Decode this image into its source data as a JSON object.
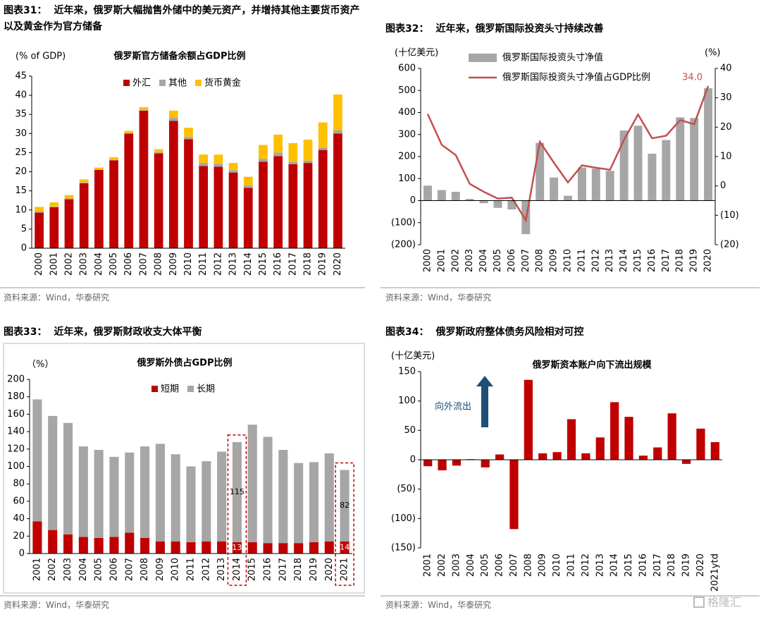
{
  "chart_data": [
    {
      "type": "stacked_bar",
      "figure": "图表31：",
      "caption": "近年来，俄罗斯大幅抛售外储中的美元资产，并增持其他主要货币资产以及黄金作为官方储备",
      "title": "俄罗斯官方储备余额占GDP比例",
      "y_label": "(% of GDP)",
      "categories": [
        "2000",
        "2001",
        "2002",
        "2003",
        "2004",
        "2005",
        "2006",
        "2007",
        "2008",
        "2009",
        "2010",
        "2011",
        "2012",
        "2013",
        "2014",
        "2015",
        "2016",
        "2017",
        "2018",
        "2019",
        "2020"
      ],
      "series": [
        {
          "name": "外汇",
          "color": "#c00000",
          "values": [
            9.3,
            10.7,
            12.8,
            17.0,
            20.5,
            23.0,
            30.0,
            36.0,
            24.8,
            33.3,
            28.5,
            21.5,
            21.3,
            19.8,
            15.8,
            22.6,
            24.1,
            22.0,
            22.3,
            25.7,
            30.0
          ]
        },
        {
          "name": "其他",
          "color": "#a6a6a6",
          "values": [
            0.3,
            0.2,
            0.2,
            0.2,
            0.1,
            0.1,
            0.1,
            0.1,
            0.3,
            0.8,
            0.6,
            0.8,
            0.8,
            0.6,
            0.6,
            0.8,
            0.9,
            0.6,
            0.6,
            0.6,
            0.8
          ]
        },
        {
          "name": "货币黄金",
          "color": "#ffc000",
          "values": [
            1.2,
            1.1,
            0.9,
            0.8,
            0.5,
            0.7,
            0.6,
            0.8,
            0.8,
            1.9,
            2.4,
            2.2,
            2.4,
            1.9,
            2.3,
            3.6,
            4.7,
            4.9,
            5.5,
            6.6,
            9.4
          ]
        }
      ],
      "ylim": [
        0,
        45
      ],
      "yticks": [
        0,
        5,
        10,
        15,
        20,
        25,
        30,
        35,
        40,
        45
      ],
      "grid": false,
      "legend": "top",
      "source": "资料来源：Wind，华泰研究"
    },
    {
      "type": "combo",
      "figure": "图表32：",
      "caption": "近年来，俄罗斯国际投资头寸持续改善",
      "y_label": "(十亿美元)",
      "y2_label": "(%)",
      "categories": [
        "2000",
        "2001",
        "2002",
        "2003",
        "2004",
        "2005",
        "2006",
        "2007",
        "2008",
        "2009",
        "2010",
        "2011",
        "2012",
        "2013",
        "2014",
        "2015",
        "2016",
        "2017",
        "2018",
        "2019",
        "2020"
      ],
      "series": [
        {
          "name": "俄罗斯国际投资头寸净值",
          "type": "bar",
          "color": "#a6a6a6",
          "values": [
            68,
            48,
            40,
            8,
            -12,
            -33,
            -40,
            -152,
            262,
            105,
            22,
            150,
            145,
            135,
            318,
            340,
            213,
            275,
            378,
            375,
            510
          ]
        },
        {
          "name": "俄罗斯国际投资头寸净值占GDP比例",
          "type": "line",
          "axis": "y2",
          "color": "#c0504d",
          "values": [
            24.5,
            14,
            10.5,
            0.7,
            -2,
            -4.3,
            -4,
            -11.7,
            15,
            7.9,
            1.2,
            7,
            6.2,
            5.5,
            15.7,
            24.3,
            16.2,
            17.1,
            22.4,
            21,
            34.0
          ],
          "value_labels": [
            null,
            null,
            null,
            null,
            null,
            null,
            null,
            null,
            null,
            null,
            null,
            null,
            null,
            null,
            null,
            null,
            null,
            null,
            null,
            null,
            "34.0"
          ]
        }
      ],
      "ylim": [
        -200,
        600
      ],
      "yticks": [
        {
          "value": -200,
          "label": "(200)"
        },
        {
          "value": -100,
          "label": "(100)"
        },
        0,
        100,
        200,
        300,
        400,
        500,
        600
      ],
      "y2lim": [
        -20,
        40
      ],
      "y2ticks": [
        {
          "value": -20,
          "label": "(20)"
        },
        {
          "value": -10,
          "label": "(10)"
        },
        0,
        10,
        20,
        30,
        40
      ],
      "grid": false,
      "legend": "top-left",
      "source": "资料来源：Wind，华泰研究"
    },
    {
      "type": "stacked_bar",
      "figure": "图表33：",
      "caption": "近年来，俄罗斯财政收支大体平衡",
      "title": "俄罗斯外债占GDP比例",
      "y_label": "（%）",
      "categories": [
        "2001",
        "2002",
        "2003",
        "2004",
        "2005",
        "2006",
        "2007",
        "2008",
        "2009",
        "2010",
        "2011",
        "2012",
        "2013",
        "2014",
        "2015",
        "2016",
        "2017",
        "2018",
        "2019",
        "2020",
        "2021"
      ],
      "series": [
        {
          "name": "短期",
          "color": "#c00000",
          "values": [
            37,
            27,
            22,
            19,
            18,
            19,
            24,
            18,
            14,
            14,
            13,
            14,
            14,
            13,
            13,
            12,
            12,
            12,
            13,
            14,
            14
          ]
        },
        {
          "name": "长期",
          "color": "#a6a6a6",
          "values": [
            140,
            131,
            128,
            104,
            101,
            92,
            92,
            105,
            112,
            100,
            87,
            92,
            103,
            115,
            135,
            122,
            107,
            92,
            92,
            101,
            82
          ]
        }
      ],
      "ylim": [
        0,
        200
      ],
      "yticks": [
        0,
        20,
        40,
        60,
        80,
        100,
        120,
        140,
        160,
        180,
        200
      ],
      "grid": false,
      "legend": "top",
      "source": "资料来源：Wind，华泰研究"
    },
    {
      "type": "bar",
      "figure": "图表34：",
      "caption": "俄罗斯政府整体债务风险相对可控",
      "title": "俄罗斯资本账户向下流出规模",
      "y_label": "(十亿美元)",
      "annotation": "向外流出",
      "categories": [
        "2001",
        "2002",
        "2003",
        "2004",
        "2005",
        "2006",
        "2007",
        "2008",
        "2009",
        "2010",
        "2011",
        "2012",
        "2013",
        "2014",
        "2015",
        "2016",
        "2017",
        "2018",
        "2019",
        "2020",
        "2021ytd"
      ],
      "values": [
        -11,
        -18,
        -10,
        1,
        -13,
        9,
        -118,
        136,
        11,
        13,
        69,
        11,
        38,
        98,
        73,
        7,
        21,
        79,
        -7,
        53,
        30
      ],
      "color": "#c00000",
      "ylim": [
        -150,
        150
      ],
      "yticks": [
        {
          "value": -150,
          "label": "(150)"
        },
        {
          "value": -100,
          "label": "(100)"
        },
        {
          "value": -50,
          "label": "(50)"
        },
        0,
        50,
        100,
        150
      ],
      "grid": false,
      "source": "资料来源：Wind，华泰研究"
    }
  ],
  "watermark": "格隆汇"
}
